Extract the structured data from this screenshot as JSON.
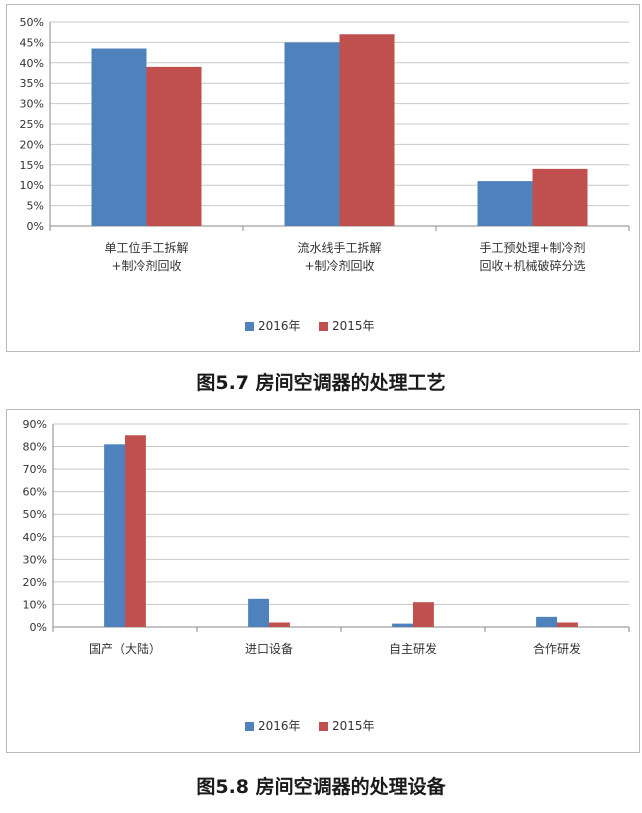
{
  "colors": {
    "s2016": "#4f81bd",
    "s2015": "#c0504d",
    "grid": "#c8c8c8",
    "axis": "#888888",
    "text": "#333333"
  },
  "captions": {
    "fig1": "图5.7  房间空调器的处理工艺",
    "fig2": "图5.8  房间空调器的处理设备"
  },
  "chart_data": [
    {
      "type": "bar",
      "categories": [
        [
          "单工位手工拆解",
          "+制冷剂回收"
        ],
        [
          "流水线手工拆解",
          "+制冷剂回收"
        ],
        [
          "手工预处理+制冷剂",
          "回收+机械破碎分选"
        ]
      ],
      "series": [
        {
          "name": "2016年",
          "values": [
            43.5,
            45,
            11
          ]
        },
        {
          "name": "2015年",
          "values": [
            39,
            47,
            14
          ]
        }
      ],
      "ylim": [
        0,
        50
      ],
      "yticks": [
        "0%",
        "5%",
        "10%",
        "15%",
        "20%",
        "25%",
        "30%",
        "35%",
        "40%",
        "45%",
        "50%"
      ],
      "grid": true,
      "legend": "bottom"
    },
    {
      "type": "bar",
      "categories": [
        [
          "国产（大陆）"
        ],
        [
          "进口设备"
        ],
        [
          "自主研发"
        ],
        [
          "合作研发"
        ]
      ],
      "series": [
        {
          "name": "2016年",
          "values": [
            81,
            12.5,
            1.5,
            4.5
          ]
        },
        {
          "name": "2015年",
          "values": [
            85,
            2,
            11,
            2
          ]
        }
      ],
      "ylim": [
        0,
        90
      ],
      "yticks": [
        "0%",
        "10%",
        "20%",
        "30%",
        "40%",
        "50%",
        "60%",
        "70%",
        "80%",
        "90%"
      ],
      "grid": true,
      "legend": "bottom"
    }
  ]
}
